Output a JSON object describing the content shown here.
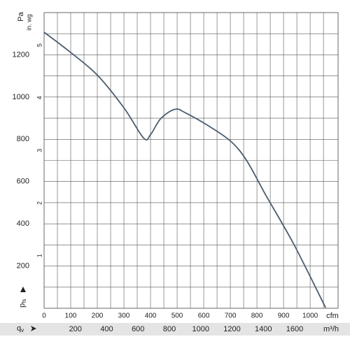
{
  "chart_data": {
    "type": "line",
    "y_unit": "Pa",
    "y2_unit": "in. wg",
    "x_unit": "cfm",
    "x2_unit": "m³/h",
    "y_symbol": "p",
    "y_subscript": "fs",
    "x_symbol": "q",
    "x_subscript": "v",
    "x": [
      0,
      97,
      200,
      300,
      374,
      400,
      439,
      492,
      532,
      624,
      703,
      761,
      834,
      939,
      1058
    ],
    "series": [
      {
        "color": "#4c5d6e",
        "values": [
          1307,
          1214,
          1104,
          949,
          806,
          822,
          899,
          942,
          925,
          859,
          789,
          700,
          534,
          302,
          3
        ]
      }
    ],
    "xlim": [
      0,
      1105
    ],
    "xticks": [
      0,
      100,
      200,
      300,
      400,
      500,
      600,
      700,
      800,
      900,
      1000
    ],
    "xgrid": [
      50,
      100,
      150,
      200,
      250,
      300,
      350,
      400,
      450,
      500,
      550,
      600,
      650,
      700,
      750,
      800,
      850,
      900,
      950,
      1000,
      1050
    ],
    "ylim": [
      0,
      1400
    ],
    "yticks": [
      200,
      400,
      600,
      800,
      1000,
      1200
    ],
    "ygrid": [
      100,
      200,
      300,
      400,
      500,
      600,
      700,
      800,
      900,
      1000,
      1100,
      1200,
      1300
    ],
    "y2lim": [
      0,
      5.62
    ],
    "y2ticks": [
      1,
      2,
      3,
      4,
      5
    ],
    "x2lim": [
      0,
      1877
    ],
    "x2ticks": [
      200,
      400,
      600,
      800,
      1000,
      1200,
      1400,
      1600
    ]
  }
}
